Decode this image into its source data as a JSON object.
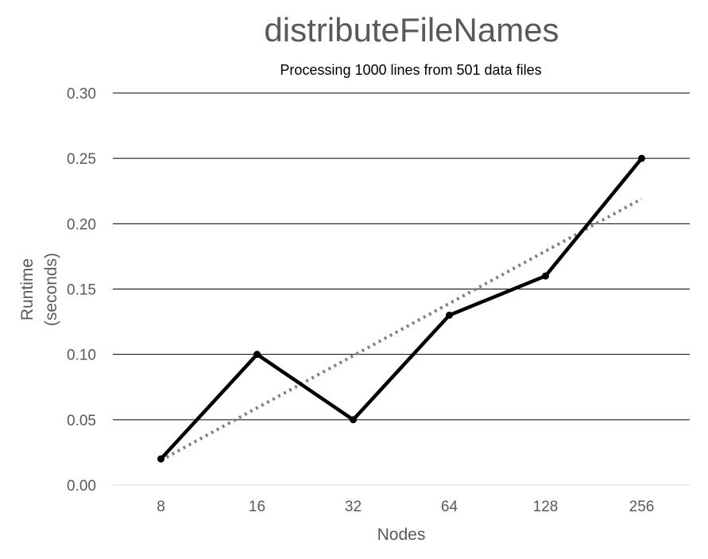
{
  "chart_data": {
    "type": "line",
    "title": "distributeFileNames",
    "subtitle": "Processing 1000 lines from 501 data files",
    "xlabel": "Nodes",
    "ylabel_lines": [
      "Runtime",
      "(seconds)"
    ],
    "categories": [
      "8",
      "16",
      "32",
      "64",
      "128",
      "256"
    ],
    "series": [
      {
        "values": [
          0.02,
          0.1,
          0.05,
          0.13,
          0.16,
          0.25
        ],
        "color": "#000000",
        "style": "solid",
        "markers": true
      }
    ],
    "trendline": {
      "type": "linear",
      "values": [
        0.019,
        0.059,
        0.099,
        0.139,
        0.179,
        0.219
      ],
      "color": "#808080",
      "style": "dotted"
    },
    "ylim": [
      0,
      0.3
    ],
    "yticks": [
      0.0,
      0.05,
      0.1,
      0.15,
      0.2,
      0.25,
      0.3
    ],
    "ytick_labels": [
      "0.00",
      "0.05",
      "0.10",
      "0.15",
      "0.20",
      "0.25",
      "0.30"
    ],
    "grid": "horizontal",
    "legend": "none",
    "colors": {
      "text": "#595959",
      "title": "#595959",
      "gridline": "#000000"
    }
  }
}
